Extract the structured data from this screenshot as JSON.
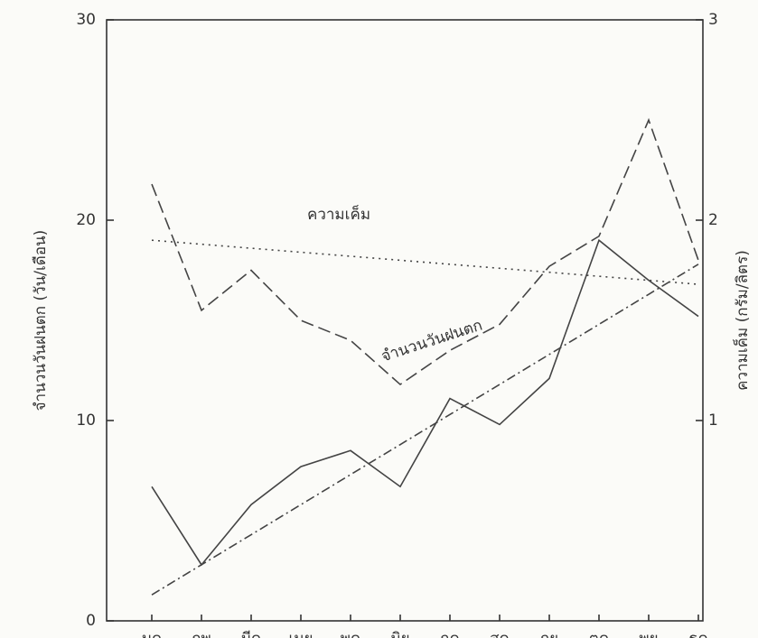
{
  "chart_data": {
    "type": "line",
    "y_label": "จำนวนวันฝนตก (วัน/เดือน)",
    "y2_label": "ความเค็ม (กรัม/ลิตร)",
    "categories": [
      "มค",
      "กพ",
      "มีค",
      "เมย",
      "พค",
      "มิย",
      "กค",
      "สค",
      "กย",
      "ตค",
      "พย",
      "ธค"
    ],
    "series": [
      {
        "color": "#444444",
        "dash": "solid",
        "values": [
          6.7,
          2.8,
          5.8,
          7.7,
          8.5,
          6.7,
          11.1,
          9.8,
          12.1,
          19.0,
          17.0,
          15.2
        ]
      },
      {
        "color": "#444444",
        "dash": "dashed",
        "axis": "y2",
        "values": [
          2.18,
          1.55,
          1.75,
          1.5,
          1.4,
          1.18,
          1.35,
          1.48,
          1.77,
          1.92,
          2.5,
          1.8
        ]
      },
      {
        "color": "#444444",
        "dash": "dotted",
        "axis": "y2",
        "values": [
          1.9,
          1.88,
          1.86,
          1.84,
          1.82,
          1.8,
          1.78,
          1.76,
          1.74,
          1.72,
          1.7,
          1.68
        ]
      },
      {
        "color": "#444444",
        "dash": "dashdot",
        "values": [
          1.3,
          2.8,
          4.3,
          5.8,
          7.3,
          8.8,
          10.3,
          11.8,
          13.3,
          14.8,
          16.3,
          17.8
        ]
      }
    ],
    "annotations": [
      "ความเค็ม",
      "จำนวนวันฝนตก"
    ],
    "ylim": [
      0,
      30
    ],
    "yticks": [
      0,
      10,
      20,
      30
    ],
    "y2lim": [
      0,
      3
    ],
    "y2ticks": [
      1,
      2,
      3
    ]
  }
}
